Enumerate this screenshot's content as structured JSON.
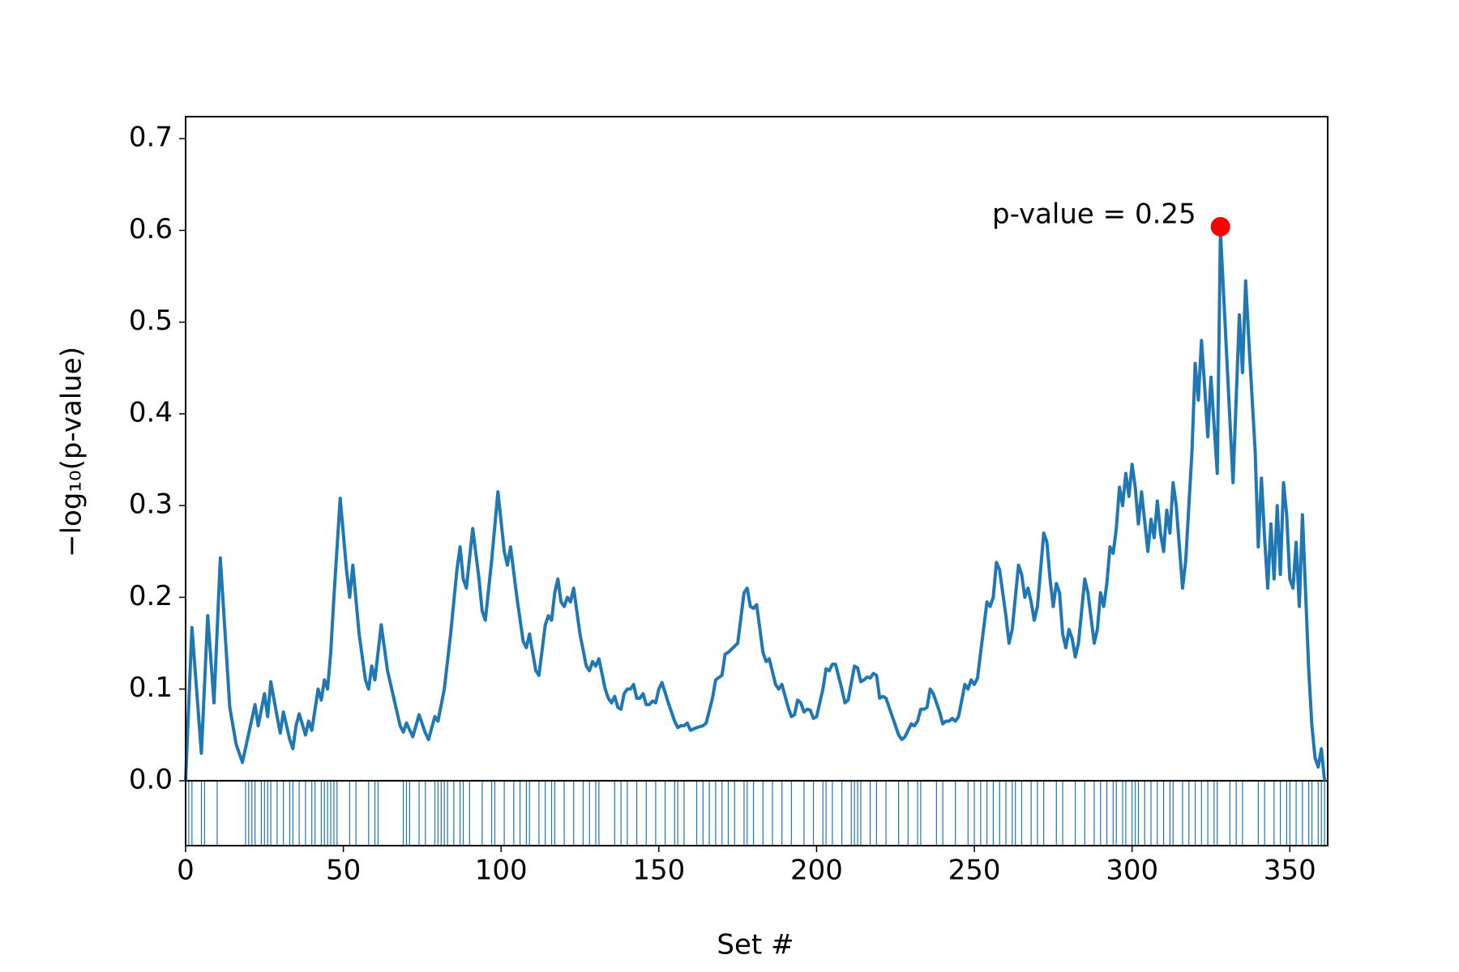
{
  "chart_data": {
    "type": "line",
    "xlabel": "Set #",
    "ylabel": "−log₁₀(p-value)",
    "xlim": [
      0,
      362
    ],
    "ylim": [
      -0.0707,
      0.724
    ],
    "xticks": [
      0,
      50,
      100,
      150,
      200,
      250,
      300,
      350
    ],
    "yticks": [
      {
        "value": 0,
        "label": "0.0"
      },
      0.1,
      0.2,
      0.3,
      0.4,
      0.5,
      0.6,
      0.7
    ],
    "series": [
      {
        "color": "#1f77b4",
        "x": [
          0,
          2,
          5,
          7,
          9,
          11,
          14,
          16,
          18,
          22,
          23,
          25,
          26,
          27,
          29,
          30,
          31,
          33,
          34,
          35,
          36,
          38,
          39,
          40,
          42,
          43,
          44,
          45,
          46,
          47,
          49,
          51,
          52,
          53,
          55,
          57,
          58,
          59,
          60,
          62,
          64,
          66,
          68,
          69,
          70,
          72,
          74,
          76,
          77,
          79,
          80,
          82,
          84,
          86,
          87,
          88,
          89,
          91,
          93,
          94,
          95,
          97,
          99,
          101,
          102,
          103,
          105,
          107,
          108,
          109,
          111,
          112,
          114,
          115,
          116,
          117,
          118,
          119,
          120,
          121,
          122,
          123,
          125,
          127,
          128,
          129,
          130,
          131,
          133,
          134,
          135,
          136,
          137,
          138,
          139,
          140,
          141,
          142,
          143,
          144,
          145,
          146,
          147,
          148,
          149,
          150,
          151,
          153,
          155,
          156,
          157,
          158,
          159,
          160,
          162,
          164,
          165,
          167,
          168,
          170,
          171,
          172,
          175,
          177,
          178,
          179,
          180,
          181,
          183,
          184,
          185,
          187,
          188,
          189,
          191,
          192,
          193,
          194,
          195,
          196,
          197,
          198,
          199,
          200,
          202,
          203,
          204,
          205,
          206,
          208,
          209,
          210,
          212,
          213,
          214,
          215,
          216,
          217,
          218,
          219,
          220,
          221,
          222,
          224,
          226,
          227,
          228,
          230,
          231,
          232,
          233,
          234,
          235,
          236,
          237,
          239,
          240,
          241,
          242,
          243,
          244,
          245,
          247,
          248,
          249,
          250,
          251,
          252,
          254,
          255,
          256,
          257,
          258,
          260,
          261,
          262,
          264,
          265,
          266,
          267,
          268,
          269,
          270,
          272,
          273,
          274,
          275,
          276,
          277,
          278,
          279,
          280,
          281,
          282,
          283,
          285,
          286,
          288,
          289,
          290,
          291,
          292,
          293,
          294,
          295,
          296,
          297,
          298,
          299,
          300,
          301,
          302,
          303,
          305,
          306,
          307,
          308,
          309,
          310,
          311,
          312,
          313,
          314,
          316,
          317,
          319,
          320,
          321,
          322,
          323,
          324,
          325,
          327,
          328,
          332,
          334,
          335,
          336,
          337,
          339,
          340,
          341,
          342,
          343,
          344,
          345,
          346,
          347,
          348,
          349,
          350,
          351,
          352,
          353,
          354,
          356,
          357,
          358,
          359,
          360,
          361
        ],
        "values": [
          0,
          0.167,
          0.03,
          0.18,
          0.085,
          0.243,
          0.08,
          0.04,
          0.02,
          0.083,
          0.06,
          0.095,
          0.07,
          0.108,
          0.07,
          0.052,
          0.075,
          0.045,
          0.035,
          0.06,
          0.073,
          0.05,
          0.065,
          0.055,
          0.1,
          0.088,
          0.11,
          0.1,
          0.14,
          0.2,
          0.308,
          0.23,
          0.2,
          0.235,
          0.16,
          0.11,
          0.1,
          0.125,
          0.11,
          0.17,
          0.12,
          0.09,
          0.06,
          0.053,
          0.063,
          0.048,
          0.072,
          0.052,
          0.045,
          0.07,
          0.065,
          0.1,
          0.16,
          0.23,
          0.255,
          0.22,
          0.21,
          0.275,
          0.22,
          0.185,
          0.175,
          0.24,
          0.315,
          0.25,
          0.235,
          0.255,
          0.2,
          0.152,
          0.145,
          0.16,
          0.12,
          0.115,
          0.17,
          0.18,
          0.175,
          0.205,
          0.22,
          0.195,
          0.19,
          0.2,
          0.195,
          0.21,
          0.16,
          0.125,
          0.12,
          0.13,
          0.125,
          0.133,
          0.1,
          0.09,
          0.085,
          0.092,
          0.08,
          0.078,
          0.095,
          0.1,
          0.1,
          0.105,
          0.09,
          0.09,
          0.095,
          0.083,
          0.083,
          0.087,
          0.085,
          0.1,
          0.107,
          0.085,
          0.065,
          0.058,
          0.06,
          0.06,
          0.063,
          0.055,
          0.058,
          0.06,
          0.063,
          0.09,
          0.11,
          0.115,
          0.138,
          0.14,
          0.15,
          0.205,
          0.21,
          0.19,
          0.188,
          0.192,
          0.14,
          0.13,
          0.133,
          0.105,
          0.1,
          0.105,
          0.08,
          0.07,
          0.072,
          0.088,
          0.085,
          0.075,
          0.078,
          0.077,
          0.068,
          0.07,
          0.1,
          0.122,
          0.12,
          0.127,
          0.127,
          0.1,
          0.085,
          0.088,
          0.125,
          0.123,
          0.108,
          0.11,
          0.113,
          0.112,
          0.117,
          0.115,
          0.09,
          0.092,
          0.09,
          0.07,
          0.05,
          0.045,
          0.048,
          0.062,
          0.06,
          0.065,
          0.078,
          0.078,
          0.08,
          0.1,
          0.095,
          0.075,
          0.062,
          0.065,
          0.065,
          0.068,
          0.065,
          0.07,
          0.105,
          0.1,
          0.11,
          0.105,
          0.112,
          0.14,
          0.195,
          0.19,
          0.2,
          0.238,
          0.23,
          0.18,
          0.15,
          0.165,
          0.235,
          0.225,
          0.2,
          0.21,
          0.195,
          0.175,
          0.19,
          0.27,
          0.26,
          0.22,
          0.19,
          0.215,
          0.205,
          0.16,
          0.145,
          0.165,
          0.155,
          0.135,
          0.15,
          0.22,
          0.205,
          0.15,
          0.165,
          0.205,
          0.19,
          0.215,
          0.255,
          0.248,
          0.275,
          0.32,
          0.3,
          0.335,
          0.31,
          0.345,
          0.32,
          0.28,
          0.315,
          0.25,
          0.285,
          0.265,
          0.305,
          0.27,
          0.25,
          0.295,
          0.27,
          0.325,
          0.3,
          0.21,
          0.24,
          0.36,
          0.455,
          0.415,
          0.48,
          0.43,
          0.375,
          0.44,
          0.335,
          0.6,
          0.325,
          0.508,
          0.445,
          0.545,
          0.48,
          0.36,
          0.255,
          0.33,
          0.265,
          0.21,
          0.28,
          0.22,
          0.3,
          0.225,
          0.325,
          0.29,
          0.22,
          0.21,
          0.26,
          0.19,
          0.29,
          0.12,
          0.06,
          0.025,
          0.015,
          0.035,
          0
        ]
      }
    ],
    "highlight": {
      "x": 328,
      "y": 0.604,
      "color": "#ff0000",
      "label": "p-value = 0.25"
    },
    "rug": {
      "color": "#1f77b4",
      "x": [
        1,
        2,
        5,
        6,
        10,
        19,
        20,
        21,
        22,
        24,
        25,
        26,
        27,
        29,
        31,
        33,
        34,
        36,
        38,
        40,
        41,
        43,
        44,
        45,
        46,
        47,
        48,
        52,
        54,
        58,
        60,
        61,
        69,
        70,
        71,
        74,
        76,
        79,
        80,
        81,
        82,
        83,
        85,
        87,
        88,
        90,
        94,
        97,
        98,
        101,
        104,
        106,
        108,
        109,
        112,
        114,
        116,
        117,
        120,
        123,
        126,
        128,
        130,
        131,
        136,
        138,
        140,
        143,
        146,
        149,
        152,
        155,
        156,
        158,
        162,
        164,
        166,
        168,
        170,
        172,
        174,
        177,
        178,
        180,
        183,
        186,
        189,
        192,
        196,
        199,
        202,
        203,
        205,
        208,
        211,
        212,
        213,
        214,
        217,
        219,
        222,
        226,
        229,
        232,
        233,
        238,
        240,
        244,
        248,
        250,
        252,
        254,
        256,
        258,
        260,
        262,
        263,
        265,
        268,
        270,
        272,
        276,
        278,
        282,
        285,
        288,
        290,
        292,
        294,
        295,
        297,
        298,
        300,
        301,
        302,
        304,
        306,
        308,
        310,
        312,
        313,
        316,
        318,
        320,
        322,
        324,
        326,
        327,
        331,
        333,
        335,
        340,
        342,
        345,
        347,
        349,
        350,
        352,
        354,
        356,
        357,
        359,
        360,
        361
      ]
    }
  }
}
